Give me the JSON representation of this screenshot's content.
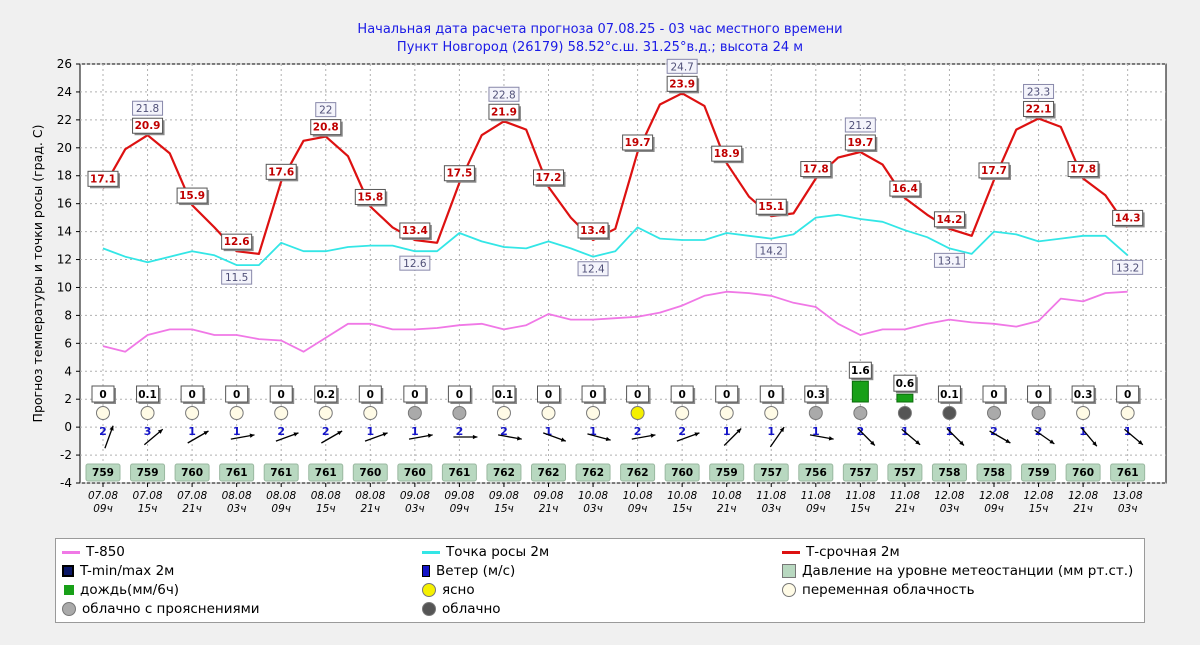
{
  "header": {
    "line1": "Начальная дата расчета прогноза 07.08.25  -  03 час местного времени",
    "line2": "Пункт  Новгород (26179)    58.52°с.ш.   31.25°в.д.; высота 24 м"
  },
  "colors": {
    "t850": "#f078e6",
    "dew": "#33e6e6",
    "temp": "#dd1111",
    "rain": "#18a018",
    "pressure_bg": "#b8d8c0",
    "clear": "#f5f000",
    "cloudy": "#555555",
    "partly": "#aaaaaa",
    "variable": "#fffbe6"
  },
  "chart_data": {
    "type": "line",
    "ylabel": "Прогноз температуры и точки росы (град. С)",
    "ylim": [
      -4,
      26
    ],
    "yticks": [
      -4,
      -2,
      0,
      2,
      4,
      6,
      8,
      10,
      12,
      14,
      16,
      18,
      20,
      22,
      24,
      26
    ],
    "grid": true,
    "x_labels": [
      {
        "date": "07.08",
        "hour": "09ч"
      },
      {
        "date": "07.08",
        "hour": "15ч"
      },
      {
        "date": "07.08",
        "hour": "21ч"
      },
      {
        "date": "08.08",
        "hour": "03ч"
      },
      {
        "date": "08.08",
        "hour": "09ч"
      },
      {
        "date": "08.08",
        "hour": "15ч"
      },
      {
        "date": "08.08",
        "hour": "21ч"
      },
      {
        "date": "09.08",
        "hour": "03ч"
      },
      {
        "date": "09.08",
        "hour": "09ч"
      },
      {
        "date": "09.08",
        "hour": "15ч"
      },
      {
        "date": "09.08",
        "hour": "21ч"
      },
      {
        "date": "10.08",
        "hour": "03ч"
      },
      {
        "date": "10.08",
        "hour": "09ч"
      },
      {
        "date": "10.08",
        "hour": "15ч"
      },
      {
        "date": "10.08",
        "hour": "21ч"
      },
      {
        "date": "11.08",
        "hour": "03ч"
      },
      {
        "date": "11.08",
        "hour": "09ч"
      },
      {
        "date": "11.08",
        "hour": "15ч"
      },
      {
        "date": "11.08",
        "hour": "21ч"
      },
      {
        "date": "12.08",
        "hour": "03ч"
      },
      {
        "date": "12.08",
        "hour": "09ч"
      },
      {
        "date": "12.08",
        "hour": "15ч"
      },
      {
        "date": "12.08",
        "hour": "21ч"
      },
      {
        "date": "13.08",
        "hour": "03ч"
      }
    ],
    "series": [
      {
        "name": "T-срочная 2м",
        "color": "#dd1111",
        "values": [
          17.1,
          19.9,
          20.9,
          19.6,
          15.9,
          14.3,
          12.6,
          12.4,
          17.6,
          20.5,
          20.8,
          19.4,
          15.8,
          14.3,
          13.4,
          13.2,
          17.5,
          20.9,
          21.9,
          21.3,
          17.2,
          15.0,
          13.4,
          14.2,
          19.7,
          23.1,
          23.9,
          23.0,
          18.9,
          16.5,
          15.1,
          15.3,
          17.8,
          19.3,
          19.7,
          18.8,
          16.4,
          15.2,
          14.2,
          13.7,
          17.7,
          21.3,
          22.1,
          21.5,
          17.8,
          16.6,
          14.3
        ]
      },
      {
        "name": "Точка росы 2м",
        "color": "#33e6e6",
        "values": [
          12.8,
          12.2,
          11.8,
          12.2,
          12.6,
          12.3,
          11.6,
          11.6,
          13.2,
          12.6,
          12.6,
          12.9,
          13.0,
          13.0,
          12.6,
          12.6,
          13.9,
          13.3,
          12.9,
          12.8,
          13.3,
          12.8,
          12.2,
          12.6,
          14.3,
          13.5,
          13.4,
          13.4,
          13.9,
          13.7,
          13.5,
          13.8,
          15.0,
          15.2,
          14.9,
          14.7,
          14.1,
          13.6,
          12.8,
          12.4,
          14.0,
          13.8,
          13.3,
          13.5,
          13.7,
          13.7,
          12.3
        ]
      },
      {
        "name": "T-850",
        "color": "#f078e6",
        "values": [
          5.8,
          5.4,
          6.6,
          7.0,
          7.0,
          6.6,
          6.6,
          6.3,
          6.2,
          5.4,
          6.4,
          7.4,
          7.4,
          7.0,
          7.0,
          7.1,
          7.3,
          7.4,
          7.0,
          7.3,
          8.1,
          7.7,
          7.7,
          7.8,
          7.9,
          8.2,
          8.7,
          9.4,
          9.7,
          9.6,
          9.4,
          8.9,
          8.6,
          7.4,
          6.6,
          7.0,
          7.0,
          7.4,
          7.7,
          7.5,
          7.4,
          7.2,
          7.6,
          9.2,
          9.0,
          9.6,
          9.7
        ]
      }
    ],
    "point_labels": [
      {
        "i": 0,
        "v": "17.1",
        "kind": "max"
      },
      {
        "i": 2,
        "v": "20.9",
        "kind": "max"
      },
      {
        "i": 2,
        "v": "21.8",
        "kind": "tmax"
      },
      {
        "i": 4,
        "v": "15.9",
        "kind": "max"
      },
      {
        "i": 6,
        "v": "12.6",
        "kind": "max"
      },
      {
        "i": 6,
        "v": "11.5",
        "kind": "tmin"
      },
      {
        "i": 8,
        "v": "17.6",
        "kind": "max"
      },
      {
        "i": 10,
        "v": "20.8",
        "kind": "max"
      },
      {
        "i": 10,
        "v": "22",
        "kind": "tmax"
      },
      {
        "i": 12,
        "v": "15.8",
        "kind": "max"
      },
      {
        "i": 14,
        "v": "13.4",
        "kind": "max"
      },
      {
        "i": 14,
        "v": "12.6",
        "kind": "tmin"
      },
      {
        "i": 16,
        "v": "17.5",
        "kind": "max"
      },
      {
        "i": 18,
        "v": "21.9",
        "kind": "max"
      },
      {
        "i": 18,
        "v": "22.8",
        "kind": "tmax"
      },
      {
        "i": 20,
        "v": "17.2",
        "kind": "max"
      },
      {
        "i": 22,
        "v": "13.4",
        "kind": "max"
      },
      {
        "i": 22,
        "v": "12.4",
        "kind": "tmin"
      },
      {
        "i": 24,
        "v": "19.7",
        "kind": "max"
      },
      {
        "i": 26,
        "v": "23.9",
        "kind": "max"
      },
      {
        "i": 26,
        "v": "24.7",
        "kind": "tmax"
      },
      {
        "i": 28,
        "v": "18.9",
        "kind": "max"
      },
      {
        "i": 30,
        "v": "15.1",
        "kind": "max"
      },
      {
        "i": 30,
        "v": "14.2",
        "kind": "tmin"
      },
      {
        "i": 32,
        "v": "17.8",
        "kind": "max"
      },
      {
        "i": 34,
        "v": "19.7",
        "kind": "max"
      },
      {
        "i": 34,
        "v": "21.2",
        "kind": "tmax"
      },
      {
        "i": 36,
        "v": "16.4",
        "kind": "max"
      },
      {
        "i": 38,
        "v": "14.2",
        "kind": "max"
      },
      {
        "i": 38,
        "v": "13.1",
        "kind": "tmin"
      },
      {
        "i": 40,
        "v": "17.7",
        "kind": "max"
      },
      {
        "i": 42,
        "v": "22.1",
        "kind": "max"
      },
      {
        "i": 42,
        "v": "23.3",
        "kind": "tmax"
      },
      {
        "i": 44,
        "v": "17.8",
        "kind": "max"
      },
      {
        "i": 46,
        "v": "14.3",
        "kind": "max"
      },
      {
        "i": 46,
        "v": "13.2",
        "kind": "tmin"
      }
    ],
    "precip": [
      "0",
      "0.1",
      "0",
      "0",
      "0",
      "0.2",
      "0",
      "0",
      "0",
      "0.1",
      "0",
      "0",
      "0",
      "0",
      "0",
      "0",
      "0.3",
      "1.6",
      "0.6",
      "0.1",
      "0",
      "0",
      "0.3",
      "0"
    ],
    "precip_values": [
      0,
      0.1,
      0,
      0,
      0,
      0.2,
      0,
      0,
      0,
      0.1,
      0,
      0,
      0,
      0,
      0,
      0,
      0.3,
      1.6,
      0.6,
      0.1,
      0,
      0,
      0.3,
      0
    ],
    "cloud": [
      "variable",
      "variable",
      "variable",
      "variable",
      "variable",
      "variable",
      "variable",
      "partly",
      "partly",
      "variable",
      "variable",
      "variable",
      "clear",
      "variable",
      "variable",
      "variable",
      "partly",
      "partly",
      "cloudy",
      "cloudy",
      "partly",
      "partly",
      "variable",
      "variable"
    ],
    "wind_speed": [
      "2",
      "3",
      "1",
      "1",
      "2",
      "2",
      "1",
      "1",
      "2",
      "2",
      "1",
      "1",
      "2",
      "2",
      "1",
      "1",
      "1",
      "2",
      "1",
      "1",
      "2",
      "2",
      "1",
      "1"
    ],
    "wind_dir_deg": [
      200,
      230,
      240,
      260,
      250,
      240,
      250,
      260,
      270,
      280,
      290,
      285,
      260,
      250,
      225,
      215,
      280,
      315,
      310,
      315,
      300,
      305,
      320,
      310
    ],
    "pressure": [
      "759",
      "759",
      "760",
      "761",
      "761",
      "761",
      "760",
      "760",
      "761",
      "762",
      "762",
      "762",
      "762",
      "760",
      "759",
      "757",
      "756",
      "757",
      "757",
      "758",
      "758",
      "759",
      "760",
      "761"
    ]
  },
  "legend": {
    "t850": "Т-850",
    "dew": "Точка росы 2м",
    "temp": "Т-срочная 2м",
    "tminmax": "T-min/max 2м",
    "wind": "Ветер (м/с)",
    "pressure": "Давление на уровне метеостанции (мм рт.ст.)",
    "rain": "дождь(мм/6ч)",
    "clear": "ясно",
    "variable": "переменная облачность",
    "partly": "облачно с прояснениями",
    "cloudy": "облачно"
  }
}
